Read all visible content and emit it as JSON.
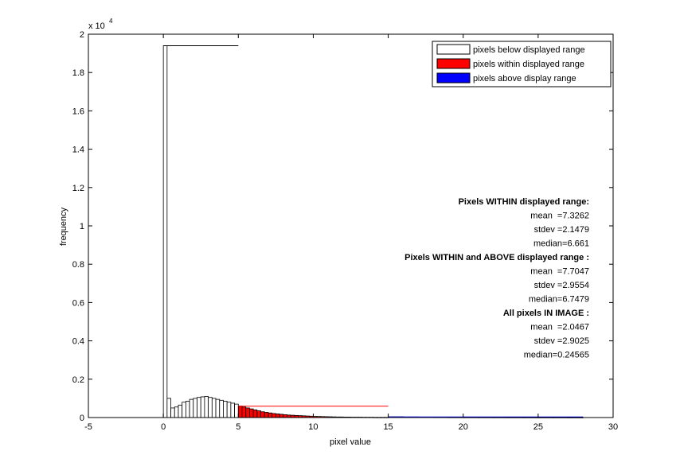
{
  "chart_data": {
    "type": "bar",
    "xlabel": "pixel value",
    "ylabel": "frequency",
    "y_exponent_label": "x 10",
    "y_exponent": "4",
    "xlim": [
      -5,
      30
    ],
    "ylim": [
      0,
      2
    ],
    "y_scale_factor": 10000,
    "x_ticks": [
      "-5",
      "0",
      "5",
      "10",
      "15",
      "20",
      "25",
      "30"
    ],
    "y_ticks": [
      "0",
      "0.2",
      "0.4",
      "0.6",
      "0.8",
      "1",
      "1.2",
      "1.4",
      "1.6",
      "1.8",
      "2"
    ],
    "legend_position": "top-right",
    "series": [
      {
        "name": "pixels below displayed range",
        "color": "#ffffff",
        "x": [
          0,
          0.25,
          0.5,
          0.75,
          1.0,
          1.25,
          1.5,
          1.75,
          2.0,
          2.25,
          2.5,
          2.75,
          3.0,
          3.25,
          3.5,
          3.75,
          4.0,
          4.25,
          4.5,
          4.75
        ],
        "values": [
          1.94,
          0.1,
          0.05,
          0.055,
          0.065,
          0.08,
          0.085,
          0.095,
          0.1,
          0.105,
          0.108,
          0.11,
          0.105,
          0.1,
          0.095,
          0.09,
          0.085,
          0.08,
          0.075,
          0.07
        ]
      },
      {
        "name": "pixels within displayed range",
        "color": "#ff0000",
        "x": [
          5.0,
          5.25,
          5.5,
          5.75,
          6.0,
          6.25,
          6.5,
          6.75,
          7.0,
          7.25,
          7.5,
          7.75,
          8.0,
          8.25,
          8.5,
          8.75,
          9.0,
          9.25,
          9.5,
          9.75,
          10.0,
          10.25,
          10.5,
          10.75,
          11.0,
          11.25,
          11.5,
          11.75,
          12.0,
          12.25,
          12.5,
          12.75,
          13.0,
          13.25,
          13.5,
          13.75,
          14.0,
          14.25,
          14.5,
          14.75
        ],
        "values": [
          0.06,
          0.055,
          0.05,
          0.045,
          0.04,
          0.035,
          0.03,
          0.027,
          0.024,
          0.021,
          0.019,
          0.017,
          0.015,
          0.013,
          0.012,
          0.011,
          0.01,
          0.009,
          0.008,
          0.007,
          0.006,
          0.0055,
          0.005,
          0.0045,
          0.004,
          0.0035,
          0.003,
          0.003,
          0.0025,
          0.0025,
          0.002,
          0.002,
          0.002,
          0.0015,
          0.0015,
          0.0015,
          0.001,
          0.001,
          0.001,
          0.001
        ]
      },
      {
        "name": "pixels above display range",
        "color": "#0000ff",
        "x": [
          15.0,
          16.0,
          17.0,
          18.0,
          19.0,
          20.0,
          21.0,
          22.0,
          23.0,
          24.0,
          25.0,
          26.0,
          27.0
        ],
        "values": [
          0.004,
          0.003,
          0.002,
          0.0015,
          0.0012,
          0.001,
          0.0009,
          0.0008,
          0.0007,
          0.0006,
          0.0005,
          0.0004,
          0.0003
        ]
      }
    ],
    "reference_lines": [
      {
        "color": "#000000",
        "x": [
          0,
          5
        ],
        "y": 1.94
      },
      {
        "color": "#ff0000",
        "x": [
          5,
          15
        ],
        "y": 0.059
      },
      {
        "color": "#0000ff",
        "x": [
          15,
          28
        ],
        "y": 0.003
      }
    ],
    "stats_lines": [
      {
        "text": "Pixels WITHIN displayed range:",
        "bold": true
      },
      {
        "text": "mean  =7.3262",
        "bold": false
      },
      {
        "text": "stdev =2.1479",
        "bold": false
      },
      {
        "text": "median=6.661",
        "bold": false
      },
      {
        "text": "Pixels WITHIN and ABOVE displayed range :",
        "bold": true
      },
      {
        "text": "mean  =7.7047",
        "bold": false
      },
      {
        "text": "stdev =2.9554",
        "bold": false
      },
      {
        "text": "median=6.7479",
        "bold": false
      },
      {
        "text": "All pixels IN IMAGE :",
        "bold": true
      },
      {
        "text": "mean  =2.0467",
        "bold": false
      },
      {
        "text": "stdev =2.9025",
        "bold": false
      },
      {
        "text": "median=0.24565",
        "bold": false
      }
    ]
  }
}
